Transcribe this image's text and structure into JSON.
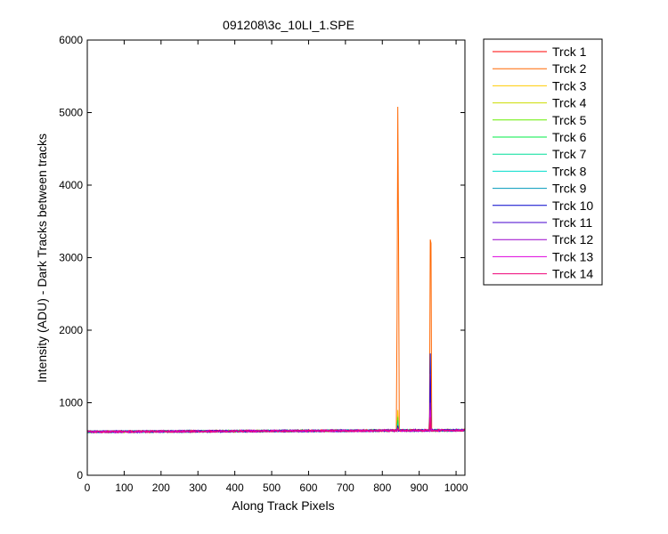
{
  "chart_data": {
    "type": "line",
    "title": "091208\\3c_10LI_1.SPE",
    "xlabel": "Along Track Pixels",
    "ylabel": "Intensity (ADU) - Dark Tracks between tracks",
    "xlim": [
      0,
      1024
    ],
    "ylim": [
      0,
      6000
    ],
    "xticks": [
      0,
      100,
      200,
      300,
      400,
      500,
      600,
      700,
      800,
      900,
      1000
    ],
    "yticks": [
      0,
      1000,
      2000,
      3000,
      4000,
      5000,
      6000
    ],
    "grid": false,
    "legend_position": "outside-right",
    "baseline": 600,
    "series": [
      {
        "name": "Trck 1",
        "color": "#ff0000",
        "peaks": [
          [
            842,
            700
          ],
          [
            930,
            650
          ]
        ]
      },
      {
        "name": "Trck 2",
        "color": "#ff6600",
        "peaks": [
          [
            840,
            2200
          ],
          [
            842,
            5080
          ],
          [
            844,
            3320
          ],
          [
            928,
            800
          ],
          [
            930,
            3250
          ],
          [
            932,
            3200
          ]
        ]
      },
      {
        "name": "Trck 3",
        "color": "#ffcc00",
        "peaks": [
          [
            842,
            900
          ],
          [
            930,
            700
          ]
        ]
      },
      {
        "name": "Trck 4",
        "color": "#ccdd00",
        "peaks": [
          [
            842,
            820
          ],
          [
            930,
            680
          ]
        ]
      },
      {
        "name": "Trck 5",
        "color": "#66ee00",
        "peaks": [
          [
            842,
            800
          ],
          [
            930,
            660
          ]
        ]
      },
      {
        "name": "Trck 6",
        "color": "#00ee44",
        "peaks": [
          [
            842,
            760
          ],
          [
            930,
            650
          ]
        ]
      },
      {
        "name": "Trck 7",
        "color": "#00dd99",
        "peaks": [
          [
            842,
            720
          ],
          [
            930,
            650
          ]
        ]
      },
      {
        "name": "Trck 8",
        "color": "#00ddcc",
        "peaks": [
          [
            842,
            700
          ],
          [
            930,
            660
          ]
        ]
      },
      {
        "name": "Trck 9",
        "color": "#0099bb",
        "peaks": [
          [
            842,
            690
          ],
          [
            930,
            700
          ]
        ]
      },
      {
        "name": "Trck 10",
        "color": "#0000cc",
        "peaks": [
          [
            842,
            680
          ],
          [
            930,
            1680
          ]
        ]
      },
      {
        "name": "Trck 11",
        "color": "#4400cc",
        "peaks": [
          [
            842,
            660
          ],
          [
            930,
            1400
          ]
        ]
      },
      {
        "name": "Trck 12",
        "color": "#9900cc",
        "peaks": [
          [
            842,
            650
          ],
          [
            930,
            1000
          ]
        ]
      },
      {
        "name": "Trck 13",
        "color": "#dd00dd",
        "peaks": [
          [
            842,
            640
          ],
          [
            930,
            900
          ]
        ]
      },
      {
        "name": "Trck 14",
        "color": "#ee0077",
        "peaks": [
          [
            842,
            640
          ],
          [
            930,
            800
          ]
        ]
      }
    ]
  }
}
